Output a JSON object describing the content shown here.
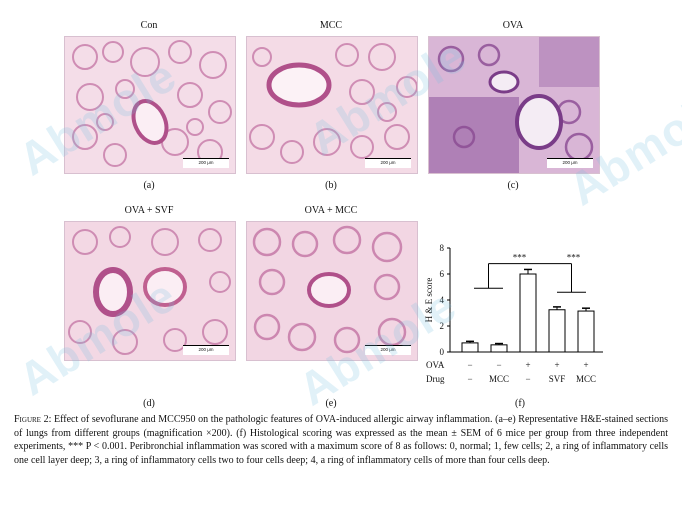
{
  "panels": [
    {
      "title": "Con",
      "label": "(a)",
      "scale": "200 μm",
      "hue": "#e8b8d0"
    },
    {
      "title": "MCC",
      "label": "(b)",
      "scale": "200 μm",
      "hue": "#e6b4cc"
    },
    {
      "title": "OVA",
      "label": "(c)",
      "scale": "200 μm",
      "hue": "#c99cc8"
    },
    {
      "title": "OVA + SVF",
      "label": "(d)",
      "scale": "200 μm",
      "hue": "#e4aec8"
    },
    {
      "title": "OVA + MCC",
      "label": "(e)",
      "scale": "200 μm",
      "hue": "#e2b0c8"
    }
  ],
  "chart_label": "(f)",
  "chart_data": {
    "type": "bar",
    "ylabel": "H & E score",
    "ylim": [
      0,
      8
    ],
    "yticks": [
      0,
      2,
      4,
      6,
      8
    ],
    "values": [
      0.7,
      0.55,
      6.0,
      3.25,
      3.15
    ],
    "errors": [
      0.12,
      0.1,
      0.35,
      0.22,
      0.22
    ],
    "rows": [
      {
        "name": "OVA",
        "values": [
          "−",
          "−",
          "+",
          "+",
          "+"
        ]
      },
      {
        "name": "Drug",
        "values": [
          "−",
          "MCC",
          "−",
          "SVF",
          "MCC"
        ]
      }
    ],
    "significance": [
      "***",
      "***"
    ]
  },
  "caption": {
    "figure_label": "Figure 2:",
    "text": " Effect of sevoflurane and MCC950 on the pathologic features of OVA-induced allergic airway inflammation. (a–e) Representative H&E-stained sections of lungs from different groups (magnification ×200). (f) Histological scoring was expressed as the mean ± SEM of 6 mice per group from three independent experiments, *** P < 0.001. Peribronchial inflammation was scored with a maximum score of 8 as follows: 0, normal; 1, few cells; 2, a ring of inflammatory cells one cell layer deep; 3, a ring of inflammatory cells two to four cells deep; 4, a ring of inflammatory cells of more than four cells deep."
  },
  "watermark": "Abmole"
}
